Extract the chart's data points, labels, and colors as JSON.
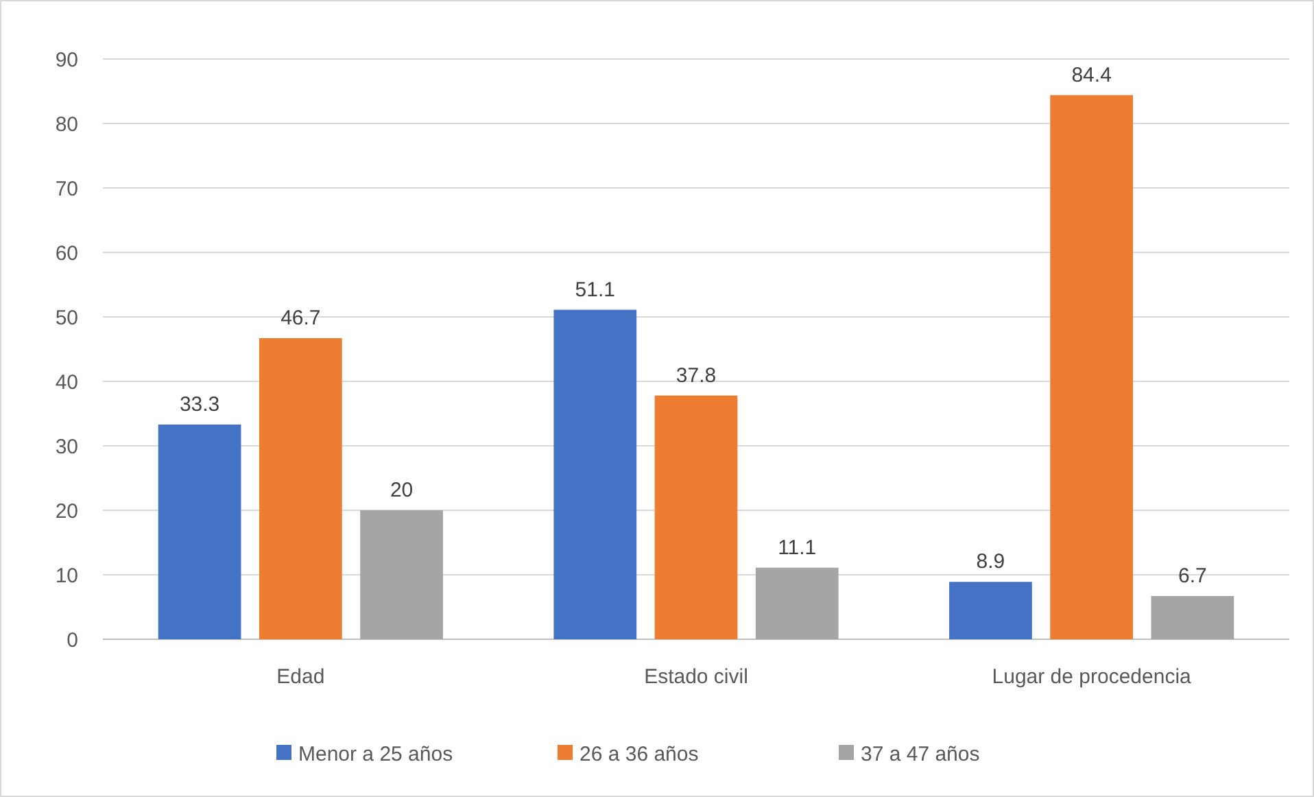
{
  "chart_data": {
    "type": "bar",
    "categories": [
      "Edad",
      "Estado civil",
      "Lugar de procedencia"
    ],
    "series": [
      {
        "name": "Menor a 25 años",
        "color": "#4472c4",
        "values": [
          33.3,
          51.1,
          8.9
        ]
      },
      {
        "name": "26 a 36 años",
        "color": "#ed7d31",
        "values": [
          46.7,
          37.8,
          84.4
        ]
      },
      {
        "name": "37 a 47 años",
        "color": "#a5a5a5",
        "values": [
          20,
          11.1,
          6.7
        ]
      }
    ],
    "ylim": [
      0,
      90
    ],
    "yticks": [
      0,
      10,
      20,
      30,
      40,
      50,
      60,
      70,
      80,
      90
    ],
    "grid": "y",
    "data_labels": true,
    "legend": "bottom"
  }
}
